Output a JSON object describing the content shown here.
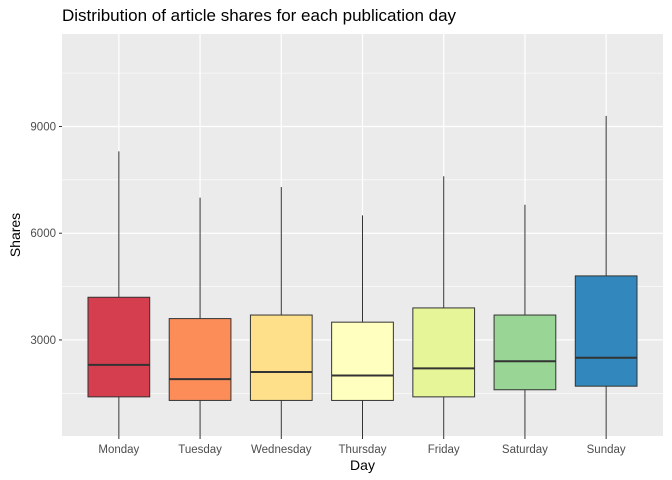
{
  "chart_data": {
    "type": "boxplot",
    "title": "Distribution of article shares for each publication day",
    "xlabel": "Day",
    "ylabel": "Shares",
    "ylim": [
      300,
      11600
    ],
    "yticks": [
      3000,
      6000,
      9000
    ],
    "grid": true,
    "legend": "none",
    "categories": [
      "Monday",
      "Tuesday",
      "Wednesday",
      "Thursday",
      "Friday",
      "Saturday",
      "Sunday"
    ],
    "boxes": [
      {
        "category": "Monday",
        "whisker_low": 300,
        "q1": 1400,
        "median": 2300,
        "q3": 4200,
        "whisker_high": 8300,
        "color": "#D53E4F"
      },
      {
        "category": "Tuesday",
        "whisker_low": 300,
        "q1": 1300,
        "median": 1900,
        "q3": 3600,
        "whisker_high": 7000,
        "color": "#FC8D59"
      },
      {
        "category": "Wednesday",
        "whisker_low": 300,
        "q1": 1300,
        "median": 2100,
        "q3": 3700,
        "whisker_high": 7300,
        "color": "#FEE08B"
      },
      {
        "category": "Thursday",
        "whisker_low": 300,
        "q1": 1300,
        "median": 2000,
        "q3": 3500,
        "whisker_high": 6500,
        "color": "#FFFFBF"
      },
      {
        "category": "Friday",
        "whisker_low": 300,
        "q1": 1400,
        "median": 2200,
        "q3": 3900,
        "whisker_high": 7600,
        "color": "#E6F598"
      },
      {
        "category": "Saturday",
        "whisker_low": 300,
        "q1": 1600,
        "median": 2400,
        "q3": 3700,
        "whisker_high": 6800,
        "color": "#99D594"
      },
      {
        "category": "Sunday",
        "whisker_low": 300,
        "q1": 1700,
        "median": 2500,
        "q3": 4800,
        "whisker_high": 9300,
        "color": "#3288BD"
      }
    ],
    "panel_background": "#EBEBEB",
    "gridline_color": "#FFFFFF"
  }
}
